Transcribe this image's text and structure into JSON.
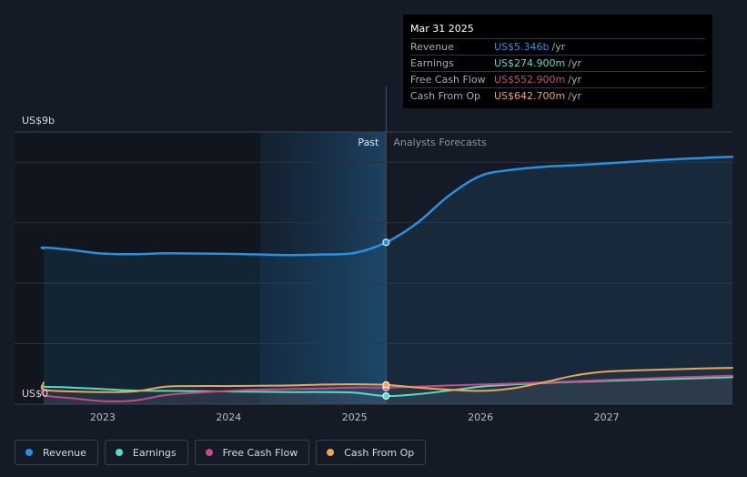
{
  "colors": {
    "revenue": "#2a8fdf",
    "earnings": "#57dcc0",
    "free_cash_flow": "#c84a85",
    "cash_from_op": "#e8a85a"
  },
  "tooltip": {
    "date": "Mar 31 2025",
    "rows": [
      {
        "label": "Revenue",
        "value": "US$5.346b",
        "unit": "/yr",
        "color": "#2a8fdf"
      },
      {
        "label": "Earnings",
        "value": "US$274.900m",
        "unit": "/yr",
        "color": "#57dcc0"
      },
      {
        "label": "Free Cash Flow",
        "value": "US$552.900m",
        "unit": "/yr",
        "color": "#c84a85"
      },
      {
        "label": "Cash From Op",
        "value": "US$642.700m",
        "unit": "/yr",
        "color": "#e8a85a"
      }
    ]
  },
  "legend": [
    {
      "label": "Revenue",
      "color": "#2a8fdf"
    },
    {
      "label": "Earnings",
      "color": "#57dcc0"
    },
    {
      "label": "Free Cash Flow",
      "color": "#c84a85"
    },
    {
      "label": "Cash From Op",
      "color": "#e8a85a"
    }
  ],
  "chart_data": {
    "type": "line",
    "title": "",
    "xlabel": "",
    "ylabel": "",
    "y_top_label": "US$9b",
    "y_bottom_label": "US$0",
    "ylim": [
      0,
      9
    ],
    "xlim": [
      2022.3,
      2028.0
    ],
    "x_ticks": [
      2023,
      2024,
      2025,
      2026,
      2027
    ],
    "x_tick_labels": [
      "2023",
      "2024",
      "2025",
      "2026",
      "2027"
    ],
    "past_label": "Past",
    "forecast_label": "Analysts Forecasts",
    "divider_x": 2025.25,
    "past_shade_start": 2024.25,
    "grid": true,
    "legend_position": "bottom-left",
    "series": [
      {
        "name": "Revenue",
        "key": "revenue",
        "x": [
          2022.25,
          2022.5,
          2022.75,
          2023.0,
          2023.25,
          2023.5,
          2023.75,
          2024.0,
          2024.25,
          2024.5,
          2024.75,
          2025.0,
          2025.25,
          2025.5,
          2025.75,
          2026.0,
          2026.25,
          2026.5,
          2026.75,
          2027.0,
          2027.25,
          2027.5,
          2027.75,
          2028.0
        ],
        "y": [
          5.15,
          5.18,
          5.1,
          4.98,
          4.96,
          4.99,
          4.98,
          4.97,
          4.95,
          4.93,
          4.95,
          5.0,
          5.35,
          6.0,
          6.9,
          7.55,
          7.75,
          7.85,
          7.9,
          7.96,
          8.03,
          8.09,
          8.14,
          8.18
        ]
      },
      {
        "name": "Earnings",
        "key": "earnings",
        "x": [
          2022.25,
          2022.5,
          2022.75,
          2023.0,
          2023.25,
          2023.5,
          2023.75,
          2024.0,
          2024.25,
          2024.5,
          2024.75,
          2025.0,
          2025.25,
          2025.5,
          2025.75,
          2026.0,
          2026.25,
          2026.5,
          2026.75,
          2027.0,
          2027.25,
          2027.5,
          2027.75,
          2028.0
        ],
        "y": [
          0.6,
          0.58,
          0.55,
          0.5,
          0.45,
          0.44,
          0.43,
          0.42,
          0.41,
          0.4,
          0.4,
          0.38,
          0.27,
          0.33,
          0.45,
          0.58,
          0.65,
          0.7,
          0.74,
          0.77,
          0.8,
          0.83,
          0.86,
          0.89
        ]
      },
      {
        "name": "Free Cash Flow",
        "key": "free_cash_flow",
        "x": [
          2022.25,
          2022.5,
          2022.75,
          2023.0,
          2023.25,
          2023.5,
          2023.75,
          2024.0,
          2024.25,
          2024.5,
          2024.75,
          2025.0,
          2025.25,
          2025.5,
          2025.75,
          2026.0,
          2026.25,
          2026.5,
          2026.75,
          2027.0,
          2027.25,
          2027.5,
          2027.75,
          2028.0
        ],
        "y": [
          0.55,
          0.3,
          0.2,
          0.1,
          0.12,
          0.3,
          0.38,
          0.44,
          0.48,
          0.5,
          0.52,
          0.55,
          0.55,
          0.58,
          0.62,
          0.65,
          0.68,
          0.72,
          0.76,
          0.8,
          0.84,
          0.88,
          0.91,
          0.94
        ]
      },
      {
        "name": "Cash From Op",
        "key": "cash_from_op",
        "x": [
          2022.25,
          2022.5,
          2022.75,
          2023.0,
          2023.25,
          2023.5,
          2023.75,
          2024.0,
          2024.25,
          2024.5,
          2024.75,
          2025.0,
          2025.25,
          2025.5,
          2025.75,
          2026.0,
          2026.25,
          2026.5,
          2026.75,
          2027.0,
          2027.25,
          2027.5,
          2027.75,
          2028.0
        ],
        "y": [
          0.72,
          0.48,
          0.42,
          0.4,
          0.42,
          0.58,
          0.6,
          0.6,
          0.61,
          0.62,
          0.65,
          0.66,
          0.64,
          0.55,
          0.48,
          0.44,
          0.52,
          0.72,
          0.95,
          1.08,
          1.12,
          1.15,
          1.18,
          1.2
        ]
      }
    ]
  }
}
